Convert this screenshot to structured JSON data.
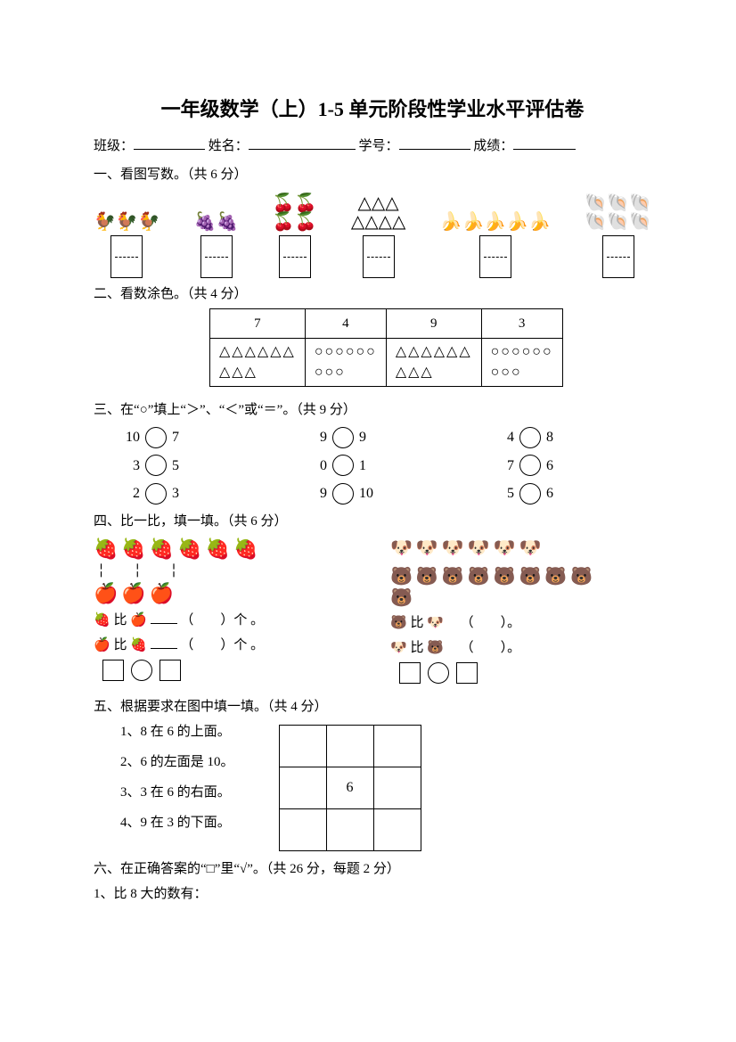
{
  "title": "一年级数学（上）1-5 单元阶段性学业水平评估卷",
  "info": {
    "class_label": "班级：",
    "name_label": "姓名：",
    "id_label": "学号：",
    "score_label": "成绩："
  },
  "q1": {
    "heading": "一、看图写数。（共 6 分）",
    "items": [
      {
        "pic_rows": [
          "🐓🐓🐓"
        ]
      },
      {
        "pic_rows": [
          "🍇🍇"
        ]
      },
      {
        "pic_rows": [
          "🍒🍒",
          "🍒🍒"
        ]
      },
      {
        "pic_rows": [
          "△△△",
          "△△△△"
        ]
      },
      {
        "pic_rows": [
          "🍌🍌🍌🍌🍌"
        ]
      },
      {
        "pic_rows": [
          "🐚🐚🐚",
          "🐚🐚🐚"
        ]
      }
    ]
  },
  "q2": {
    "heading": "二、看数涂色。（共 4 分）",
    "headers": [
      "7",
      "4",
      "9",
      "3"
    ],
    "shapes": [
      "△△△△△△\n△△△",
      "○○○○○○\n○○○",
      "△△△△△△\n△△△",
      "○○○○○○\n○○○"
    ]
  },
  "q3": {
    "heading": "三、在“○”填上“＞”、“＜”或“＝”。（共 9 分）",
    "rows": [
      [
        [
          "10",
          "7"
        ],
        [
          "9",
          "9"
        ],
        [
          "4",
          "8"
        ]
      ],
      [
        [
          "3",
          "5"
        ],
        [
          "0",
          "1"
        ],
        [
          "7",
          "6"
        ]
      ],
      [
        [
          "2",
          "3"
        ],
        [
          "9",
          "10"
        ],
        [
          "5",
          "6"
        ]
      ]
    ]
  },
  "q4": {
    "heading": "四、比一比，填一填。（共 6 分）",
    "left": {
      "row1": "🍓🍓🍓🍓🍓🍓",
      "dashes": "╎  ╎  ╎",
      "row2": "🍎🍎🍎",
      "line1_a": "🍓",
      "line1_mid": "比",
      "line1_b": "🍎",
      "line1_tail": "（　　）个 。",
      "line2_a": "🍎",
      "line2_mid": "比",
      "line2_b": "🍓",
      "line2_tail": "（　　）个 。"
    },
    "right": {
      "row1": "🐶🐶🐶🐶🐶🐶",
      "row2": "🐻🐻🐻🐻🐻🐻🐻🐻",
      "row3": "🐻",
      "line1_a": "🐻",
      "line1_mid": "比",
      "line1_b": "🐶",
      "line1_tail": "（　　）。",
      "line2_a": "🐶",
      "line2_mid": "比",
      "line2_b": "🐻",
      "line2_tail": "（　　）。"
    }
  },
  "q5": {
    "heading": "五、根据要求在图中填一填。（共 4 分）",
    "items": [
      "1、8 在 6 的上面。",
      "2、6 的左面是 10。",
      "3、3 在 6 的右面。",
      "4、9 在 3 的下面。"
    ],
    "center_value": "6"
  },
  "q6": {
    "heading": "六、在正确答案的“□”里“√”。（共 26 分，每题 2 分）",
    "sub1": "1、比 8 大的数有："
  },
  "colors": {
    "text": "#000000",
    "bg": "#ffffff",
    "border": "#000000"
  }
}
